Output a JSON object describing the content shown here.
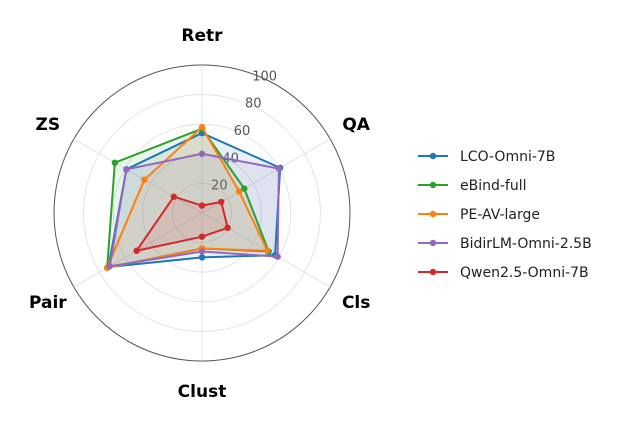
{
  "chart_data": {
    "type": "radar",
    "axes": [
      "Retr",
      "QA",
      "Cls",
      "Clust",
      "Pair",
      "ZS"
    ],
    "rlim": [
      0,
      100
    ],
    "rticks": [
      20,
      40,
      60,
      80,
      100
    ],
    "grid": true,
    "legend_position": "right",
    "series": [
      {
        "name": "LCO-Omni-7B",
        "color": "#1f77b4",
        "values": [
          54,
          61,
          57,
          30,
          73,
          59
        ]
      },
      {
        "name": "eBind-full",
        "color": "#2ca02c",
        "values": [
          57,
          33,
          52,
          24,
          74,
          68
        ]
      },
      {
        "name": "PE-AV-large",
        "color": "#ff7f0e",
        "values": [
          58,
          29,
          51,
          24,
          74,
          45
        ]
      },
      {
        "name": "BidirLM-Omni-2.5B",
        "color": "#9467bd",
        "values": [
          40,
          60,
          59,
          26,
          72,
          59
        ]
      },
      {
        "name": "Qwen2.5-Omni-7B",
        "color": "#d62728",
        "values": [
          5,
          15,
          20,
          16,
          51,
          22
        ]
      }
    ]
  }
}
